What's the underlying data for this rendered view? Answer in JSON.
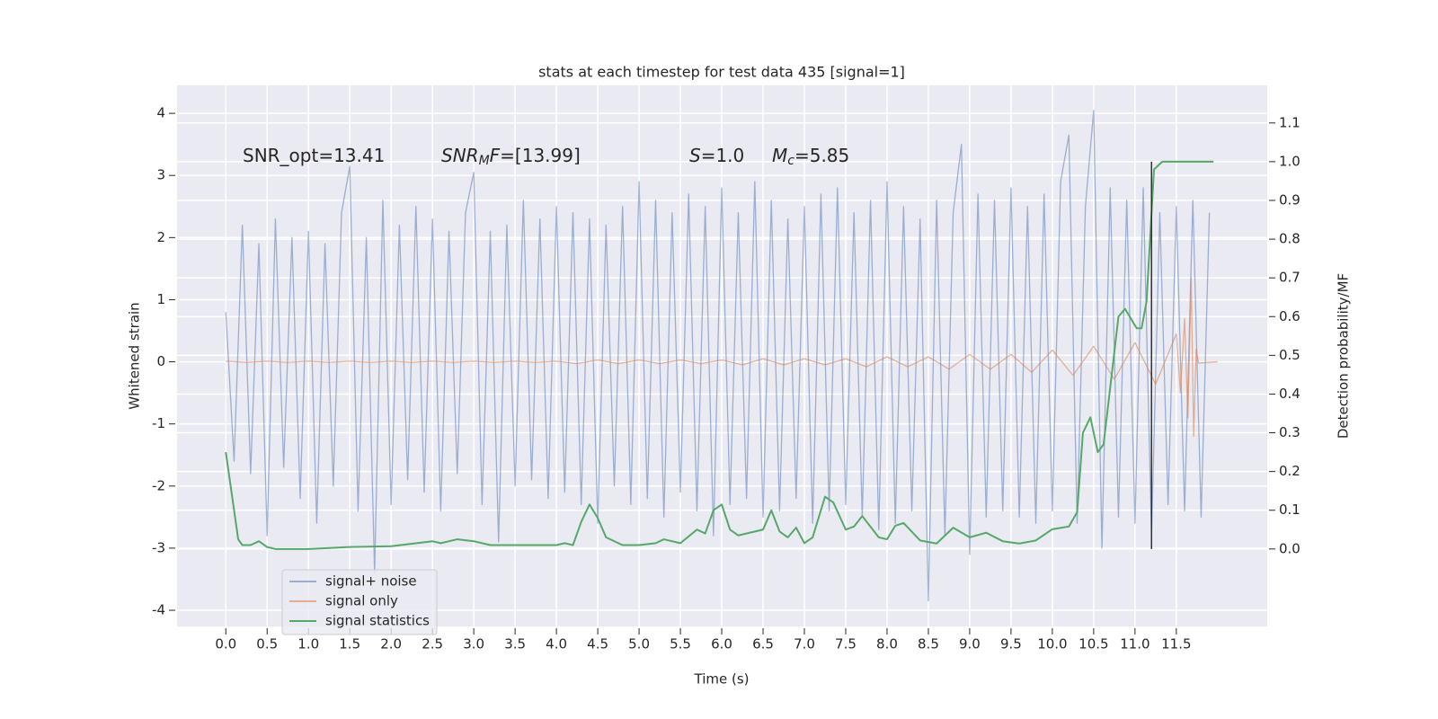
{
  "chart_data": {
    "type": "line",
    "title": "stats at each timestep for test data 435 [signal=1]",
    "xlabel": "Time (s)",
    "ylabel": "Whitened strain",
    "y2label": "Detection probability/MF",
    "xlim": [
      -0.59,
      12.6
    ],
    "ylim": [
      -4.26,
      4.45
    ],
    "y2lim": [
      -0.2,
      1.197
    ],
    "xticks": [
      {
        "value": 0,
        "label": "0.0"
      },
      0.5,
      {
        "value": 1,
        "label": "1.0"
      },
      1.5,
      {
        "value": 2,
        "label": "2.0"
      },
      2.5,
      {
        "value": 3,
        "label": "3.0"
      },
      3.5,
      {
        "value": 4,
        "label": "4.0"
      },
      4.5,
      {
        "value": 5,
        "label": "5.0"
      },
      5.5,
      {
        "value": 6,
        "label": "6.0"
      },
      6.5,
      {
        "value": 7,
        "label": "7.0"
      },
      7.5,
      {
        "value": 8,
        "label": "8.0"
      },
      8.5,
      {
        "value": 9,
        "label": "9.0"
      },
      9.5,
      {
        "value": 10,
        "label": "10.0"
      },
      10.5,
      {
        "value": 11,
        "label": "11.0"
      },
      11.5
    ],
    "yticks": [
      -4,
      -3,
      -2,
      -1,
      0,
      1,
      2,
      3,
      4
    ],
    "y2ticks": [
      {
        "value": 0,
        "label": "0.0"
      },
      0.1,
      0.2,
      0.3,
      0.4,
      0.5,
      0.6,
      0.7,
      0.8,
      0.9,
      {
        "value": 1,
        "label": "1.0"
      },
      1.1
    ],
    "grid": true,
    "legend": "lower left",
    "annotations": [
      [
        {
          "text": "SNR_opt=13.41"
        }
      ],
      [
        {
          "text": "SNR",
          "style": "italic"
        },
        {
          "text": "M",
          "style": "sub"
        },
        {
          "text": "F",
          "style": "italic"
        },
        {
          "text": "=[13.99]"
        }
      ],
      [
        {
          "text": "S",
          "style": "italic"
        },
        {
          "text": "=1.0"
        }
      ],
      [
        {
          "text": "M",
          "style": "italic"
        },
        {
          "text": "c",
          "style": "sub"
        },
        {
          "text": "=5.85"
        }
      ]
    ],
    "vline": {
      "x": 11.2,
      "y2": [
        0,
        1.0
      ],
      "color": "#333333"
    },
    "series": [
      {
        "name": "signal+ noise",
        "color": "#4c72b0",
        "opacity": 0.5,
        "x": [
          0,
          0.1,
          0.2,
          0.3,
          0.4,
          0.5,
          0.6,
          0.7,
          0.8,
          0.9,
          1,
          1.1,
          1.2,
          1.3,
          1.4,
          1.5,
          1.6,
          1.7,
          1.8,
          1.9,
          2,
          2.1,
          2.2,
          2.3,
          2.4,
          2.5,
          2.6,
          2.7,
          2.8,
          2.9,
          3,
          3.1,
          3.2,
          3.3,
          3.4,
          3.5,
          3.6,
          3.7,
          3.8,
          3.9,
          4,
          4.1,
          4.2,
          4.3,
          4.4,
          4.5,
          4.6,
          4.7,
          4.8,
          4.9,
          5,
          5.1,
          5.2,
          5.3,
          5.4,
          5.5,
          5.6,
          5.7,
          5.8,
          5.9,
          6,
          6.1,
          6.2,
          6.3,
          6.4,
          6.5,
          6.6,
          6.7,
          6.8,
          6.9,
          7,
          7.1,
          7.2,
          7.3,
          7.4,
          7.5,
          7.6,
          7.7,
          7.8,
          7.9,
          8,
          8.1,
          8.2,
          8.3,
          8.4,
          8.5,
          8.6,
          8.7,
          8.8,
          8.9,
          9,
          9.1,
          9.2,
          9.3,
          9.4,
          9.5,
          9.6,
          9.7,
          9.8,
          9.9,
          10,
          10.1,
          10.2,
          10.3,
          10.4,
          10.5,
          10.6,
          10.7,
          10.8,
          10.9,
          11,
          11.1,
          11.2,
          11.3,
          11.4,
          11.5,
          11.6,
          11.7,
          11.8,
          11.9
        ],
        "values": [
          0.8,
          -1.6,
          2.2,
          -1.8,
          1.9,
          -2.8,
          2.3,
          -1.7,
          2.0,
          -2.2,
          2.1,
          -2.6,
          1.9,
          -2.0,
          2.4,
          3.15,
          -2.4,
          2.0,
          -3.4,
          2.6,
          -2.3,
          2.2,
          -1.9,
          2.5,
          -2.1,
          2.3,
          -2.4,
          2.1,
          -1.8,
          2.4,
          3.05,
          -2.3,
          2.1,
          -2.9,
          2.2,
          -2.0,
          2.6,
          -1.9,
          2.3,
          -2.2,
          2.5,
          -2.1,
          2.4,
          -2.3,
          2.3,
          -2.6,
          2.2,
          -2.0,
          2.5,
          -2.3,
          2.9,
          -2.2,
          2.6,
          -2.5,
          2.4,
          -2.1,
          2.7,
          -2.4,
          2.5,
          -2.8,
          2.8,
          -2.3,
          2.4,
          -2.2,
          2.9,
          -2.5,
          2.6,
          -2.4,
          2.3,
          -2.2,
          2.5,
          -2.6,
          2.7,
          -2.4,
          2.8,
          -2.3,
          2.4,
          -2.5,
          2.6,
          -2.7,
          2.9,
          -2.6,
          2.5,
          -2.4,
          2.3,
          -3.85,
          2.6,
          -2.8,
          2.4,
          3.5,
          -3.1,
          2.7,
          -2.5,
          2.6,
          -2.4,
          2.8,
          -2.5,
          2.5,
          -2.6,
          2.7,
          -2.4,
          2.9,
          3.65,
          -2.6,
          2.5,
          4.05,
          -3.0,
          2.8,
          -2.5,
          2.6,
          -2.6,
          2.8,
          -2.8,
          2.4,
          -2.3,
          2.5,
          -2.4,
          2.6,
          -2.5,
          2.4
        ]
      },
      {
        "name": "signal only",
        "color": "#dd8452",
        "opacity": 0.6,
        "x": [
          0,
          0.25,
          0.5,
          0.75,
          1,
          1.25,
          1.5,
          1.75,
          2,
          2.25,
          2.5,
          2.75,
          3,
          3.25,
          3.5,
          3.75,
          4,
          4.25,
          4.5,
          4.75,
          5,
          5.25,
          5.5,
          5.75,
          6,
          6.25,
          6.5,
          6.75,
          7,
          7.25,
          7.5,
          7.75,
          8,
          8.25,
          8.5,
          8.75,
          9,
          9.25,
          9.5,
          9.75,
          10,
          10.25,
          10.5,
          10.75,
          11,
          11.25,
          11.5,
          11.55,
          11.6,
          11.64,
          11.68,
          11.71,
          11.74,
          11.77,
          12
        ],
        "values": [
          0.01,
          -0.01,
          0.01,
          -0.01,
          0.01,
          -0.01,
          0.01,
          -0.01,
          0.01,
          -0.01,
          0.01,
          -0.01,
          0.01,
          -0.01,
          0.01,
          -0.01,
          0.01,
          -0.03,
          0.03,
          -0.03,
          0.03,
          -0.03,
          0.03,
          -0.03,
          0.03,
          -0.05,
          0.05,
          -0.05,
          0.05,
          -0.05,
          0.05,
          -0.08,
          0.08,
          -0.08,
          0.08,
          -0.12,
          0.12,
          -0.12,
          0.12,
          -0.17,
          0.19,
          -0.22,
          0.25,
          -0.28,
          0.31,
          -0.36,
          0.45,
          -0.5,
          0.7,
          -0.9,
          1.35,
          -1.2,
          0.2,
          -0.02,
          0.0
        ]
      },
      {
        "name": "signal statistics",
        "color": "#55a868",
        "opacity": 1,
        "axis": "y2",
        "x": [
          0,
          0.15,
          0.2,
          0.3,
          0.4,
          0.5,
          0.6,
          1,
          1.5,
          2,
          2.5,
          2.6,
          2.8,
          3,
          3.2,
          3.5,
          4,
          4.1,
          4.2,
          4.3,
          4.4,
          4.5,
          4.6,
          4.8,
          5,
          5.2,
          5.3,
          5.5,
          5.7,
          5.8,
          5.9,
          6,
          6.1,
          6.2,
          6.5,
          6.6,
          6.7,
          6.8,
          6.9,
          7,
          7.1,
          7.25,
          7.35,
          7.5,
          7.6,
          7.7,
          7.9,
          8,
          8.1,
          8.2,
          8.4,
          8.6,
          8.8,
          9,
          9.2,
          9.4,
          9.6,
          9.8,
          10,
          10.2,
          10.3,
          10.37,
          10.46,
          10.55,
          10.62,
          10.8,
          10.88,
          11.02,
          11.08,
          11.14,
          11.23,
          11.33,
          11.5,
          11.95
        ],
        "values": [
          0.25,
          0.025,
          0.01,
          0.01,
          0.02,
          0.005,
          0,
          0,
          0.005,
          0.007,
          0.02,
          0.015,
          0.025,
          0.02,
          0.01,
          0.01,
          0.01,
          0.015,
          0.01,
          0.07,
          0.115,
          0.08,
          0.03,
          0.01,
          0.01,
          0.015,
          0.025,
          0.015,
          0.05,
          0.04,
          0.1,
          0.115,
          0.05,
          0.035,
          0.05,
          0.1,
          0.045,
          0.03,
          0.055,
          0.015,
          0.03,
          0.135,
          0.12,
          0.05,
          0.058,
          0.085,
          0.03,
          0.025,
          0.06,
          0.067,
          0.022,
          0.014,
          0.055,
          0.03,
          0.042,
          0.02,
          0.014,
          0.022,
          0.051,
          0.058,
          0.095,
          0.3,
          0.34,
          0.25,
          0.27,
          0.6,
          0.62,
          0.57,
          0.57,
          0.64,
          0.98,
          1.0,
          1.0,
          1.0
        ]
      }
    ]
  }
}
